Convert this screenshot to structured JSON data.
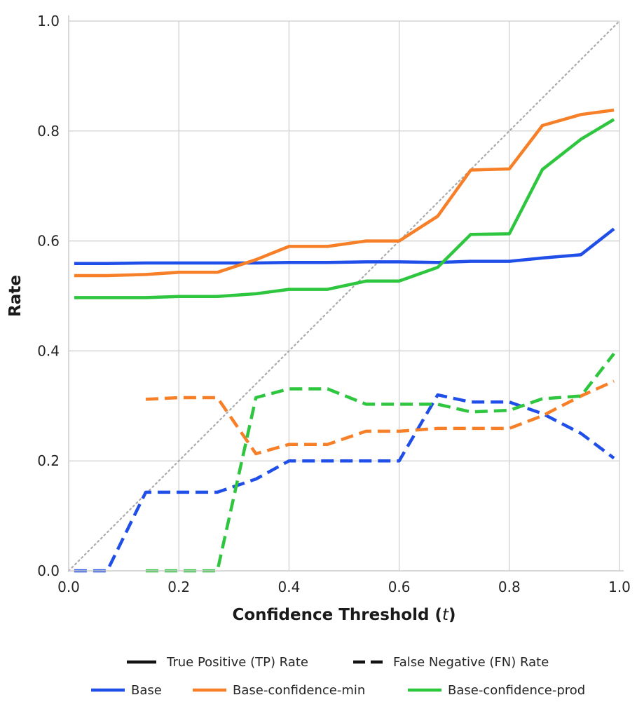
{
  "chart_data": {
    "type": "line",
    "title": "",
    "xlabel": "Confidence Threshold (",
    "xlabel_var": "t",
    "xlabel_close": ")",
    "ylabel": "Rate",
    "xlim": [
      0.0,
      1.0
    ],
    "ylim": [
      0.0,
      1.0
    ],
    "xticks": [
      0.0,
      0.2,
      0.4,
      0.6,
      0.8,
      1.0
    ],
    "yticks": [
      0.0,
      0.2,
      0.4,
      0.6,
      0.8,
      1.0
    ],
    "xtick_labels": [
      "0.0",
      "0.2",
      "0.4",
      "0.6",
      "0.8",
      "1.0"
    ],
    "ytick_labels": [
      "0.0",
      "0.2",
      "0.4",
      "0.6",
      "0.8",
      "1.0"
    ],
    "grid": true,
    "reference_line": {
      "name": "diagonal",
      "x": [
        0.0,
        1.0
      ],
      "y": [
        0.0,
        1.0
      ],
      "color": "#aaaaaa",
      "style": "dotted"
    },
    "series": [
      {
        "name": "Base",
        "metric": "TP",
        "color": "#1f4fe8",
        "style": "solid",
        "x": [
          0.01,
          0.07,
          0.14,
          0.2,
          0.27,
          0.34,
          0.4,
          0.47,
          0.54,
          0.6,
          0.67,
          0.73,
          0.8,
          0.86,
          0.93,
          0.99
        ],
        "y": [
          0.559,
          0.559,
          0.56,
          0.56,
          0.56,
          0.56,
          0.561,
          0.561,
          0.562,
          0.562,
          0.561,
          0.563,
          0.563,
          0.569,
          0.575,
          0.622
        ]
      },
      {
        "name": "Base-confidence-min",
        "metric": "TP",
        "color": "#f77f27",
        "style": "solid",
        "x": [
          0.01,
          0.07,
          0.14,
          0.2,
          0.27,
          0.34,
          0.4,
          0.47,
          0.54,
          0.6,
          0.67,
          0.73,
          0.8,
          0.86,
          0.93,
          0.99
        ],
        "y": [
          0.537,
          0.537,
          0.539,
          0.543,
          0.543,
          0.566,
          0.59,
          0.59,
          0.6,
          0.6,
          0.645,
          0.729,
          0.731,
          0.81,
          0.83,
          0.838
        ]
      },
      {
        "name": "Base-confidence-prod",
        "metric": "TP",
        "color": "#2ec63f",
        "style": "solid",
        "x": [
          0.01,
          0.07,
          0.14,
          0.2,
          0.27,
          0.34,
          0.4,
          0.47,
          0.54,
          0.6,
          0.67,
          0.73,
          0.8,
          0.86,
          0.93,
          0.99
        ],
        "y": [
          0.497,
          0.497,
          0.497,
          0.499,
          0.499,
          0.504,
          0.512,
          0.512,
          0.527,
          0.527,
          0.552,
          0.612,
          0.613,
          0.73,
          0.785,
          0.821
        ]
      },
      {
        "name": "Base",
        "metric": "FN",
        "color": "#1f4fe8",
        "style": "dashed",
        "x": [
          0.01,
          0.07,
          0.14,
          0.2,
          0.27,
          0.34,
          0.4,
          0.47,
          0.54,
          0.6,
          0.67,
          0.73,
          0.8,
          0.86,
          0.93,
          0.99
        ],
        "y": [
          0.0,
          0.0,
          0.143,
          0.143,
          0.143,
          0.167,
          0.2,
          0.2,
          0.2,
          0.2,
          0.32,
          0.307,
          0.307,
          0.286,
          0.25,
          0.205
        ]
      },
      {
        "name": "Base-confidence-min",
        "metric": "FN",
        "color": "#f77f27",
        "style": "dashed",
        "x": [
          0.14,
          0.2,
          0.27,
          0.34,
          0.4,
          0.47,
          0.54,
          0.6,
          0.67,
          0.73,
          0.8,
          0.86,
          0.93,
          0.99
        ],
        "y": [
          0.312,
          0.315,
          0.315,
          0.213,
          0.23,
          0.23,
          0.254,
          0.254,
          0.259,
          0.259,
          0.259,
          0.282,
          0.318,
          0.345
        ]
      },
      {
        "name": "Base-confidence-prod",
        "metric": "FN",
        "color": "#2ec63f",
        "style": "dashed",
        "x": [
          0.14,
          0.2,
          0.27,
          0.34,
          0.4,
          0.47,
          0.54,
          0.6,
          0.67,
          0.73,
          0.8,
          0.86,
          0.93,
          0.99
        ],
        "y": [
          0.0,
          0.0,
          0.0,
          0.315,
          0.331,
          0.331,
          0.303,
          0.303,
          0.303,
          0.289,
          0.292,
          0.313,
          0.318,
          0.395
        ]
      }
    ],
    "legend": {
      "placement": "bottom",
      "style_entries": [
        {
          "label": "True Positive (TP) Rate",
          "style": "solid",
          "color": "#111111"
        },
        {
          "label": "False Negative (FN) Rate",
          "style": "dashed",
          "color": "#111111"
        }
      ],
      "model_entries": [
        {
          "label": "Base",
          "color": "#1f4fe8"
        },
        {
          "label": "Base-confidence-min",
          "color": "#f77f27"
        },
        {
          "label": "Base-confidence-prod",
          "color": "#2ec63f"
        }
      ]
    }
  }
}
